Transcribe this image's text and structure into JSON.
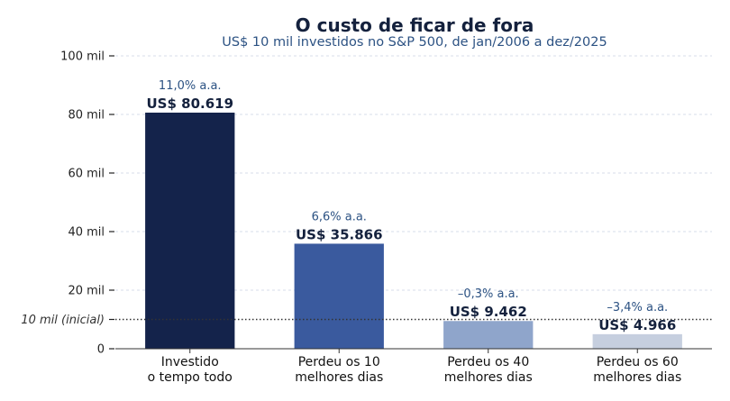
{
  "chart_data": {
    "type": "bar",
    "title": "O custo de ficar de fora",
    "subtitle": "US$ 10 mil investidos no S&P 500, de jan/2006 a dez/2025",
    "categories": [
      [
        "Investido",
        "o tempo todo"
      ],
      [
        "Perdeu os 10",
        "melhores dias"
      ],
      [
        "Perdeu os 40",
        "melhores dias"
      ],
      [
        "Perdeu os 60",
        "melhores dias"
      ]
    ],
    "values": [
      80619,
      35866,
      9462,
      4966
    ],
    "value_labels": [
      "US$ 80.619",
      "US$ 35.866",
      "US$ 9.462",
      "US$ 4.966"
    ],
    "rate_labels": [
      "11,0% a.a.",
      "6,6% a.a.",
      "–0,3% a.a.",
      "–3,4% a.a."
    ],
    "bar_colors": [
      "#14234b",
      "#3a5a9e",
      "#8fa5cb",
      "#c6cfdf"
    ],
    "ylim": [
      0,
      100000
    ],
    "yticks": [
      0,
      20000,
      40000,
      60000,
      80000,
      100000
    ],
    "ytick_labels": [
      "0",
      "20 mil",
      "40 mil",
      "60 mil",
      "80 mil",
      "100 mil"
    ],
    "reference_line": {
      "value": 10000,
      "label": "10 mil (inicial)"
    },
    "grid": true,
    "xlabel": "",
    "ylabel": ""
  }
}
